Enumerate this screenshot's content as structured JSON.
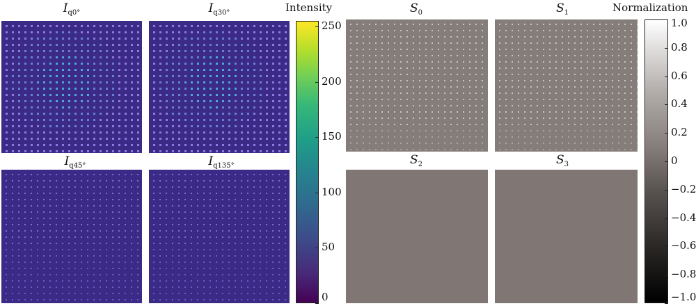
{
  "panels_intensity": [
    {
      "id": "q0",
      "symbol": "I",
      "subscript": "q0°"
    },
    {
      "id": "q30",
      "symbol": "I",
      "subscript": "q30°"
    },
    {
      "id": "q45",
      "symbol": "I",
      "subscript": "q45°"
    },
    {
      "id": "q135",
      "symbol": "I",
      "subscript": "q135°"
    }
  ],
  "panels_stokes": [
    {
      "id": "s0",
      "symbol": "S",
      "subscript": "0"
    },
    {
      "id": "s1",
      "symbol": "S",
      "subscript": "1"
    },
    {
      "id": "s2",
      "symbol": "S",
      "subscript": "2"
    },
    {
      "id": "s3",
      "symbol": "S",
      "subscript": "3"
    }
  ],
  "colorbar_intensity": {
    "label": "Intensity",
    "ticks": [
      "250",
      "200",
      "150",
      "100",
      "50",
      "0"
    ],
    "tick_values": [
      250,
      200,
      150,
      100,
      50,
      0
    ],
    "range": [
      0,
      255
    ]
  },
  "colorbar_normalization": {
    "label": "Normalization",
    "ticks": [
      "1.0",
      "0.8",
      "0.6",
      "0.4",
      "0.2",
      "0",
      "−0.2",
      "−0.4",
      "−0.6",
      "−0.8",
      "−1.0"
    ],
    "tick_values": [
      1.0,
      0.8,
      0.6,
      0.4,
      0.2,
      0,
      -0.2,
      -0.4,
      -0.6,
      -0.8,
      -1.0
    ],
    "range": [
      -1,
      1
    ]
  },
  "colors": {
    "viridis_bg": "#3b2b87",
    "stokes_bg": "#857d79",
    "stokes_flat": "#807774"
  }
}
